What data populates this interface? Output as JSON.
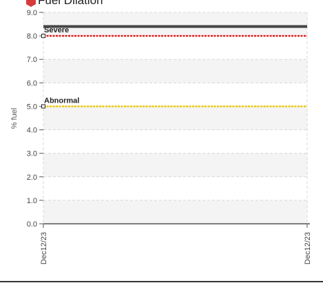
{
  "chart_data": {
    "type": "line",
    "title": "Fuel Dilation",
    "ylabel": "% fuel",
    "xlabel": "",
    "ylim": [
      0,
      9
    ],
    "yticks": [
      0,
      1,
      2,
      3,
      4,
      5,
      6,
      7,
      8,
      9
    ],
    "ytick_labels": [
      "0.0",
      "1.0",
      "2.0",
      "3.0",
      "4.0",
      "5.0",
      "6.0",
      "7.0",
      "8.0",
      "9.0"
    ],
    "x": [
      "Dec12/23",
      "Dec12/23"
    ],
    "grid": true,
    "series": [
      {
        "values": [
          8.4,
          8.4
        ],
        "color": "#444444"
      }
    ],
    "thresholds": [
      {
        "label": "Severe",
        "value": 8.0,
        "color": "#e02020"
      },
      {
        "label": "Abnormal",
        "value": 5.0,
        "color": "#f0c800"
      }
    ]
  },
  "colors": {
    "title_icon": "#d63a3a",
    "band": "#f4f4f4"
  }
}
